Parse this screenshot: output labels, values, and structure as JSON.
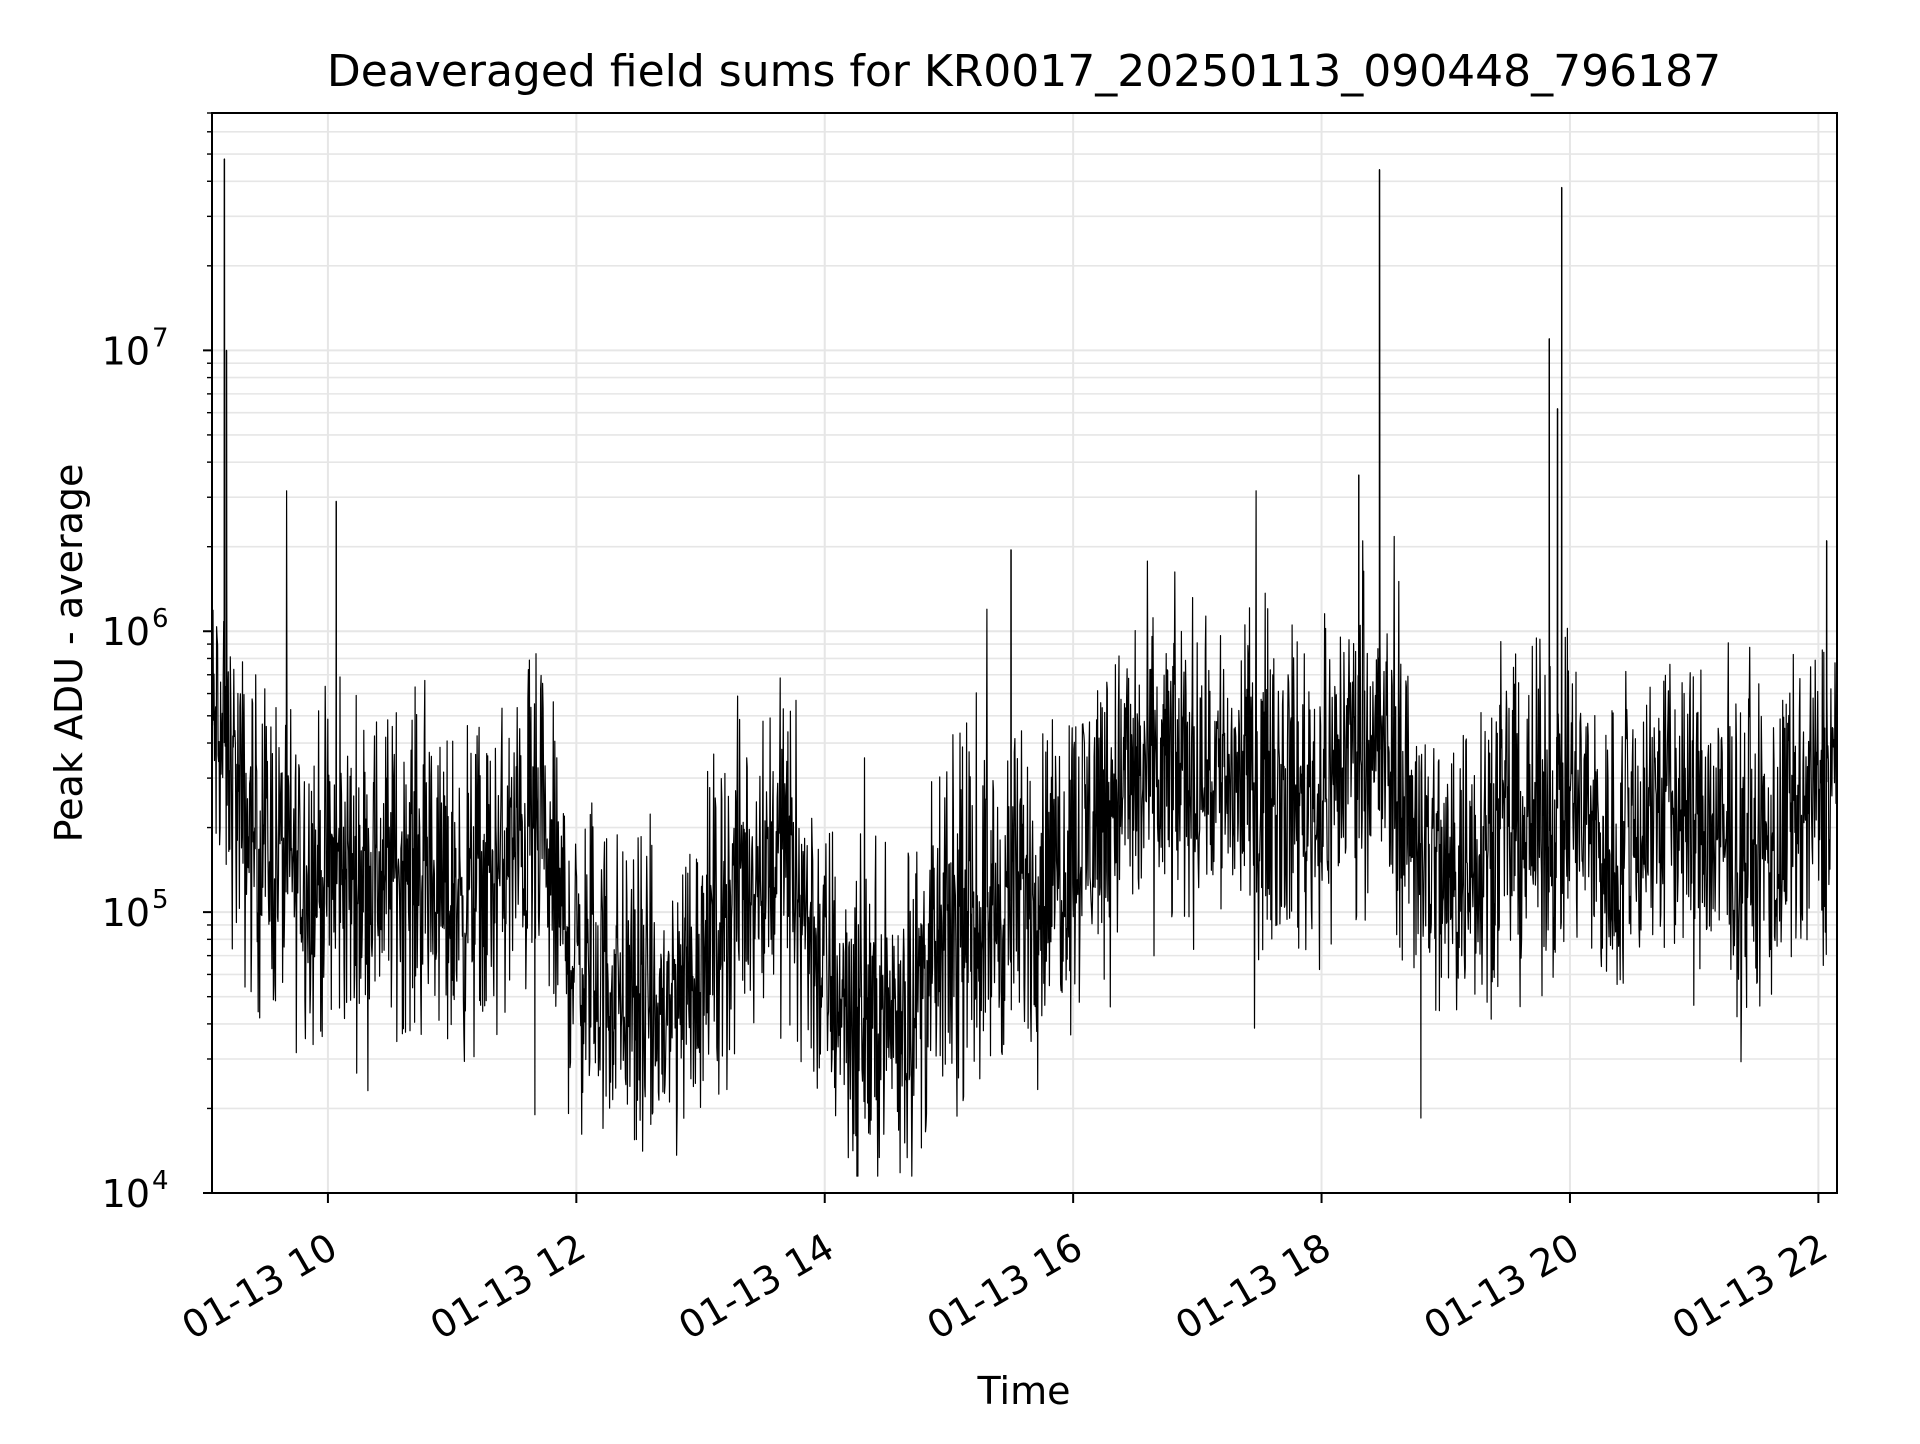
{
  "chart_data": {
    "type": "line",
    "title": "Deaveraged field sums for KR0017_20250113_090448_796187",
    "xlabel": "Time",
    "ylabel": "Peak ADU - average",
    "yscale": "log",
    "ylim": [
      10000,
      70000000
    ],
    "xlim": [
      "2025-01-13 09:04",
      "2025-01-13 22:09"
    ],
    "grid": true,
    "line_color": "#000000",
    "grid_color": "#e6e6e6",
    "x_ticks": [
      {
        "value": "2025-01-13 10:00",
        "label": "01-13 10"
      },
      {
        "value": "2025-01-13 12:00",
        "label": "01-13 12"
      },
      {
        "value": "2025-01-13 14:00",
        "label": "01-13 14"
      },
      {
        "value": "2025-01-13 16:00",
        "label": "01-13 16"
      },
      {
        "value": "2025-01-13 18:00",
        "label": "01-13 18"
      },
      {
        "value": "2025-01-13 20:00",
        "label": "01-13 20"
      },
      {
        "value": "2025-01-13 22:00",
        "label": "01-13 22"
      }
    ],
    "y_ticks": [
      {
        "value": 10000,
        "base": "10",
        "exp": "4"
      },
      {
        "value": 100000,
        "base": "10",
        "exp": "5"
      },
      {
        "value": 1000000,
        "base": "10",
        "exp": "6"
      },
      {
        "value": 10000000,
        "base": "10",
        "exp": "7"
      }
    ],
    "series": [
      {
        "x": [
          "2025-01-13 09:04",
          "2025-01-13 09:10",
          "2025-01-13 09:20",
          "2025-01-13 09:40",
          "2025-01-13 10:00",
          "2025-01-13 10:20",
          "2025-01-13 10:40",
          "2025-01-13 11:00",
          "2025-01-13 11:20",
          "2025-01-13 11:40",
          "2025-01-13 12:00",
          "2025-01-13 12:20",
          "2025-01-13 12:40",
          "2025-01-13 13:00",
          "2025-01-13 13:20",
          "2025-01-13 13:40",
          "2025-01-13 14:00",
          "2025-01-13 14:20",
          "2025-01-13 14:40",
          "2025-01-13 15:00",
          "2025-01-13 15:20",
          "2025-01-13 15:40",
          "2025-01-13 16:00",
          "2025-01-13 16:20",
          "2025-01-13 16:40",
          "2025-01-13 17:00",
          "2025-01-13 17:20",
          "2025-01-13 17:40",
          "2025-01-13 18:00",
          "2025-01-13 18:20",
          "2025-01-13 18:40",
          "2025-01-13 19:00",
          "2025-01-13 19:20",
          "2025-01-13 19:40",
          "2025-01-13 20:00",
          "2025-01-13 20:20",
          "2025-01-13 20:40",
          "2025-01-13 21:00",
          "2025-01-13 21:20",
          "2025-01-13 21:40",
          "2025-01-13 22:00",
          "2025-01-13 22:09"
        ],
        "y": [
          450000,
          400000,
          200000,
          150000,
          130000,
          140000,
          150000,
          110000,
          130000,
          200000,
          65000,
          55000,
          40000,
          70000,
          130000,
          180000,
          60000,
          40000,
          45000,
          80000,
          100000,
          120000,
          170000,
          280000,
          300000,
          330000,
          300000,
          280000,
          250000,
          500000,
          250000,
          120000,
          200000,
          200000,
          250000,
          150000,
          250000,
          220000,
          150000,
          170000,
          250000,
          350000
        ],
        "spikes": [
          {
            "x": "2025-01-13 09:10",
            "y": 48000000
          },
          {
            "x": "2025-01-13 09:11",
            "y": 10000000
          },
          {
            "x": "2025-01-13 10:04",
            "y": 2900000
          },
          {
            "x": "2025-01-13 15:30",
            "y": 1950000
          },
          {
            "x": "2025-01-13 18:28",
            "y": 44000000
          },
          {
            "x": "2025-01-13 18:18",
            "y": 3600000
          },
          {
            "x": "2025-01-13 19:50",
            "y": 11000000
          },
          {
            "x": "2025-01-13 19:56",
            "y": 38000000
          },
          {
            "x": "2025-01-13 19:54",
            "y": 6200000
          },
          {
            "x": "2025-01-13 22:04",
            "y": 2100000
          }
        ],
        "dips": [
          {
            "x": "2025-01-13 11:40",
            "y": 19000
          },
          {
            "x": "2025-01-13 12:29",
            "y": 15500
          },
          {
            "x": "2025-01-13 14:15",
            "y": 16000
          },
          {
            "x": "2025-01-13 18:48",
            "y": 18500
          }
        ]
      }
    ]
  }
}
